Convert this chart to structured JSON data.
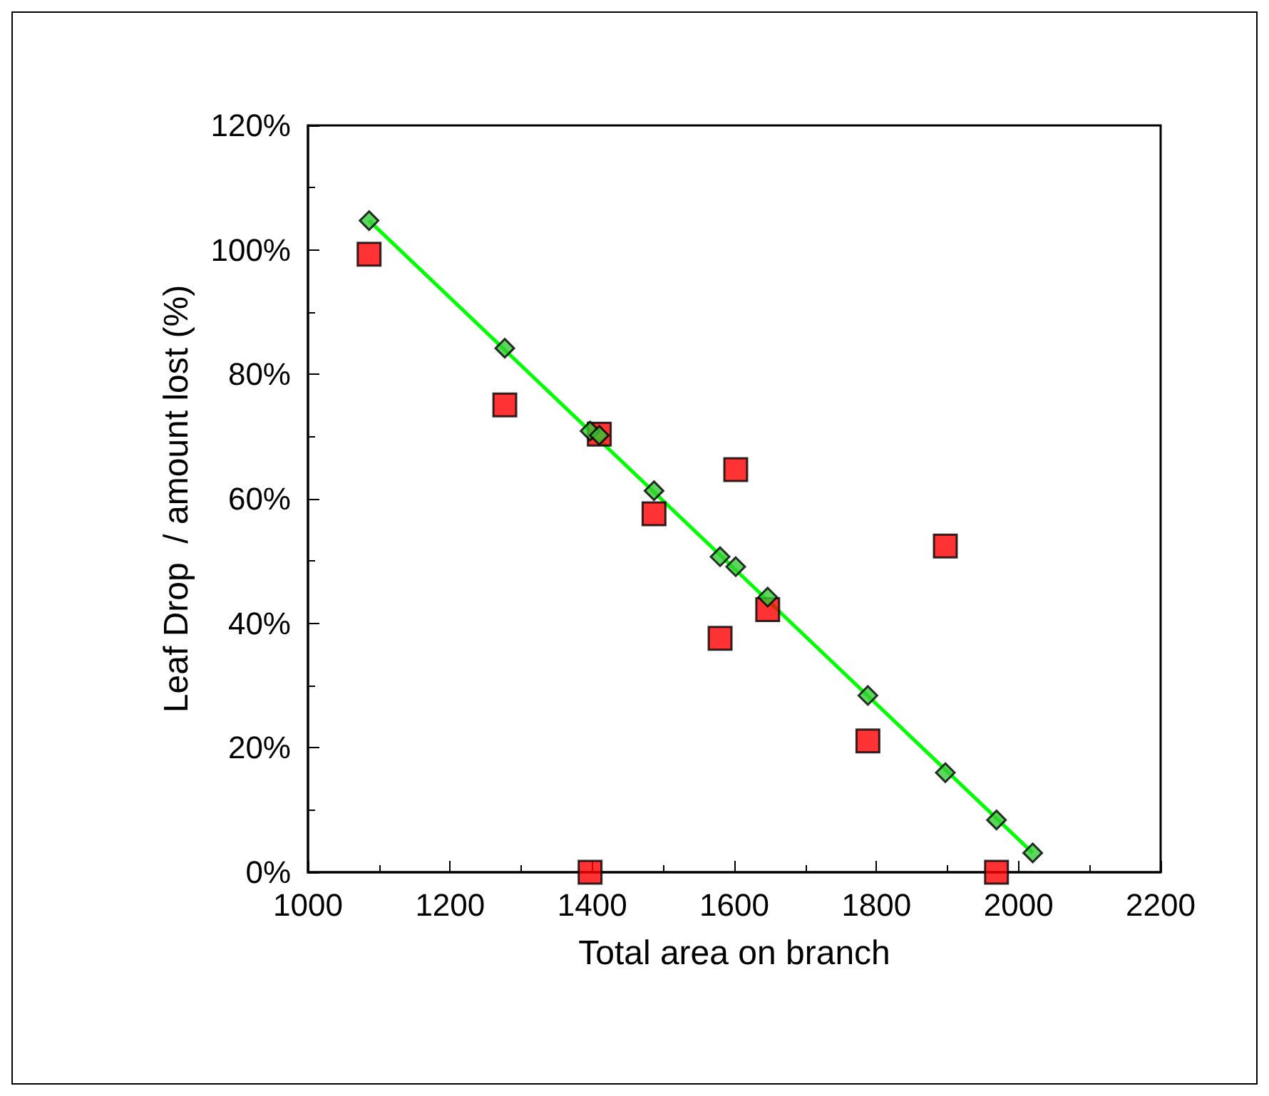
{
  "chart_data": {
    "type": "scatter",
    "xlabel": "Total area on branch",
    "ylabel": "Leaf Drop  / amount lost (%)",
    "xlim": [
      1000,
      2200
    ],
    "xticks": [
      1000,
      1200,
      1400,
      1600,
      1800,
      2000,
      2200
    ],
    "ylim": [
      0,
      120
    ],
    "yticks": [
      {
        "value": 0,
        "label": "0%"
      },
      {
        "value": 20,
        "label": "20%"
      },
      {
        "value": 40,
        "label": "40%"
      },
      {
        "value": 60,
        "label": "60%"
      },
      {
        "value": 80,
        "label": "80%"
      },
      {
        "value": 100,
        "label": "100%"
      },
      {
        "value": 120,
        "label": "120%"
      }
    ],
    "grid": false,
    "series": [
      {
        "marker": "square",
        "color": "#ff0000",
        "x": [
          1086,
          1277,
          1410,
          1487,
          1602,
          1580,
          1647,
          1897,
          1788,
          1397,
          1969
        ],
        "values": [
          99.3,
          75.1,
          70.4,
          57.6,
          64.7,
          37.6,
          42.2,
          52.4,
          21.1,
          0,
          0
        ]
      },
      {
        "type": "line",
        "marker": "none",
        "color": "#00ff00",
        "x": [
          1086,
          2020
        ],
        "values": [
          104.7,
          3.1
        ]
      },
      {
        "marker": "diamond",
        "color": "#33cc33",
        "x": [
          1086,
          1277,
          1397,
          1410,
          1487,
          1580,
          1602,
          1647,
          1788,
          1897,
          1969,
          2020
        ],
        "values": [
          104.7,
          84.2,
          70.9,
          70.2,
          61.3,
          50.7,
          49.1,
          44.2,
          28.4,
          16.0,
          8.4,
          3.1
        ]
      }
    ]
  }
}
